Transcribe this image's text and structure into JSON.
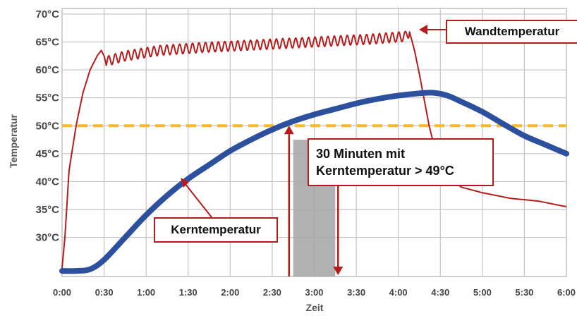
{
  "chart_data": {
    "type": "line",
    "title": "",
    "xlabel": "Zeit",
    "ylabel": "Temperatur",
    "x_ticks": [
      "0:00",
      "0:30",
      "1:00",
      "1:30",
      "2:00",
      "2:30",
      "3:00",
      "3:30",
      "4:00",
      "4:30",
      "5:00",
      "5:30",
      "6:00"
    ],
    "y_ticks": [
      "30°C",
      "35°C",
      "40°C",
      "45°C",
      "50°C",
      "55°C",
      "60°C",
      "65°C",
      "70°C"
    ],
    "x_unit": "minutes",
    "xlim": [
      0,
      360
    ],
    "ylim": [
      23,
      71
    ],
    "grid": true,
    "series": [
      {
        "name": "Wandtemperatur",
        "color": "#b71c1c",
        "oscillation_amplitude": 0.9,
        "points": [
          [
            0,
            24.5
          ],
          [
            2,
            30
          ],
          [
            5,
            42
          ],
          [
            10,
            50
          ],
          [
            15,
            56
          ],
          [
            20,
            60
          ],
          [
            25,
            62.5
          ],
          [
            28,
            63.5
          ],
          [
            30,
            62.5
          ],
          [
            31,
            61.5
          ],
          [
            45,
            62.5
          ],
          [
            70,
            63.5
          ],
          [
            100,
            64
          ],
          [
            140,
            64.5
          ],
          [
            180,
            65
          ],
          [
            220,
            65.5
          ],
          [
            245,
            66
          ],
          [
            248,
            66.8
          ],
          [
            250,
            65
          ],
          [
            252,
            63
          ],
          [
            256,
            58
          ],
          [
            262,
            50
          ],
          [
            268,
            44
          ],
          [
            275,
            41
          ],
          [
            285,
            39
          ],
          [
            300,
            38
          ],
          [
            320,
            37
          ],
          [
            340,
            36.5
          ],
          [
            360,
            35.5
          ]
        ]
      },
      {
        "name": "Kerntemperatur",
        "color": "#2c4f9e",
        "points": [
          [
            0,
            24
          ],
          [
            10,
            24
          ],
          [
            20,
            24.3
          ],
          [
            30,
            26
          ],
          [
            45,
            30
          ],
          [
            60,
            34
          ],
          [
            75,
            37.5
          ],
          [
            90,
            40.5
          ],
          [
            105,
            43
          ],
          [
            120,
            45.5
          ],
          [
            135,
            47.5
          ],
          [
            150,
            49.3
          ],
          [
            165,
            50.8
          ],
          [
            180,
            52
          ],
          [
            195,
            53
          ],
          [
            210,
            54
          ],
          [
            225,
            54.8
          ],
          [
            240,
            55.4
          ],
          [
            255,
            55.8
          ],
          [
            265,
            55.9
          ],
          [
            275,
            55.4
          ],
          [
            285,
            54.3
          ],
          [
            300,
            52.5
          ],
          [
            315,
            50.3
          ],
          [
            330,
            48.2
          ],
          [
            345,
            46.6
          ],
          [
            360,
            45
          ]
        ]
      }
    ],
    "threshold": {
      "value": 50,
      "color": "#f5b82e",
      "style": "dashed"
    },
    "highlight": {
      "from": 165,
      "to": 195,
      "color": "#a8a8a8"
    },
    "arrows": [
      {
        "at": 162,
        "direction": "up",
        "color": "#b71c1c"
      },
      {
        "at": 197,
        "direction": "down",
        "color": "#b71c1c"
      }
    ]
  },
  "annotations": {
    "wand": "Wandtemperatur",
    "kern": "Kerntemperatur",
    "duration_line1": "30 Minuten mit",
    "duration_line2": "Kerntemperatur > 49°C"
  }
}
